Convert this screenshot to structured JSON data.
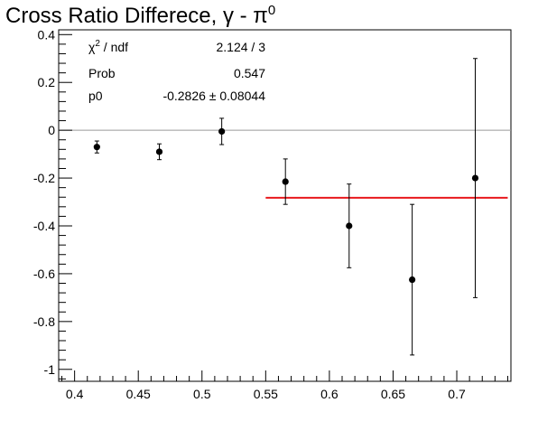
{
  "chart_data": {
    "type": "scatter",
    "title": "Cross Ratio Differece,  γ - π⁰",
    "xlabel": "",
    "ylabel": "",
    "xlim": [
      0.3875,
      0.7425
    ],
    "ylim": [
      -1.05,
      0.42
    ],
    "xticks": [
      0.4,
      0.45,
      0.5,
      0.55,
      0.6,
      0.65,
      0.7
    ],
    "xtick_labels": [
      "0.4",
      "0.45",
      "0.5",
      "0.55",
      "0.6",
      "0.65",
      "0.7"
    ],
    "yticks": [
      0.4,
      0.2,
      0,
      -0.2,
      -0.4,
      -0.6,
      -0.8,
      -1
    ],
    "ytick_labels": [
      "0.4",
      "0.2",
      "0",
      "-0.2",
      "-0.4",
      "-0.6",
      "-0.8",
      "-1"
    ],
    "points": [
      {
        "x": 0.4175,
        "y": -0.07,
        "err": 0.025
      },
      {
        "x": 0.4665,
        "y": -0.09,
        "err": 0.033
      },
      {
        "x": 0.5155,
        "y": -0.005,
        "err": 0.055
      },
      {
        "x": 0.5655,
        "y": -0.215,
        "err": 0.095
      },
      {
        "x": 0.6155,
        "y": -0.4,
        "err": 0.175
      },
      {
        "x": 0.665,
        "y": -0.625,
        "err": 0.315
      },
      {
        "x": 0.7145,
        "y": -0.2,
        "err": 0.5
      }
    ],
    "fit": {
      "y": -0.2826,
      "x_start": 0.55,
      "x_end": 0.74,
      "color": "#e8191d"
    },
    "zero_line": 0,
    "grid": false,
    "legend": "none",
    "stats": [
      {
        "label": "χ² / ndf",
        "value": "2.124 / 3"
      },
      {
        "label": "Prob",
        "value": "0.547"
      },
      {
        "label": "p0",
        "value": "-0.2826 ± 0.08044"
      }
    ]
  }
}
